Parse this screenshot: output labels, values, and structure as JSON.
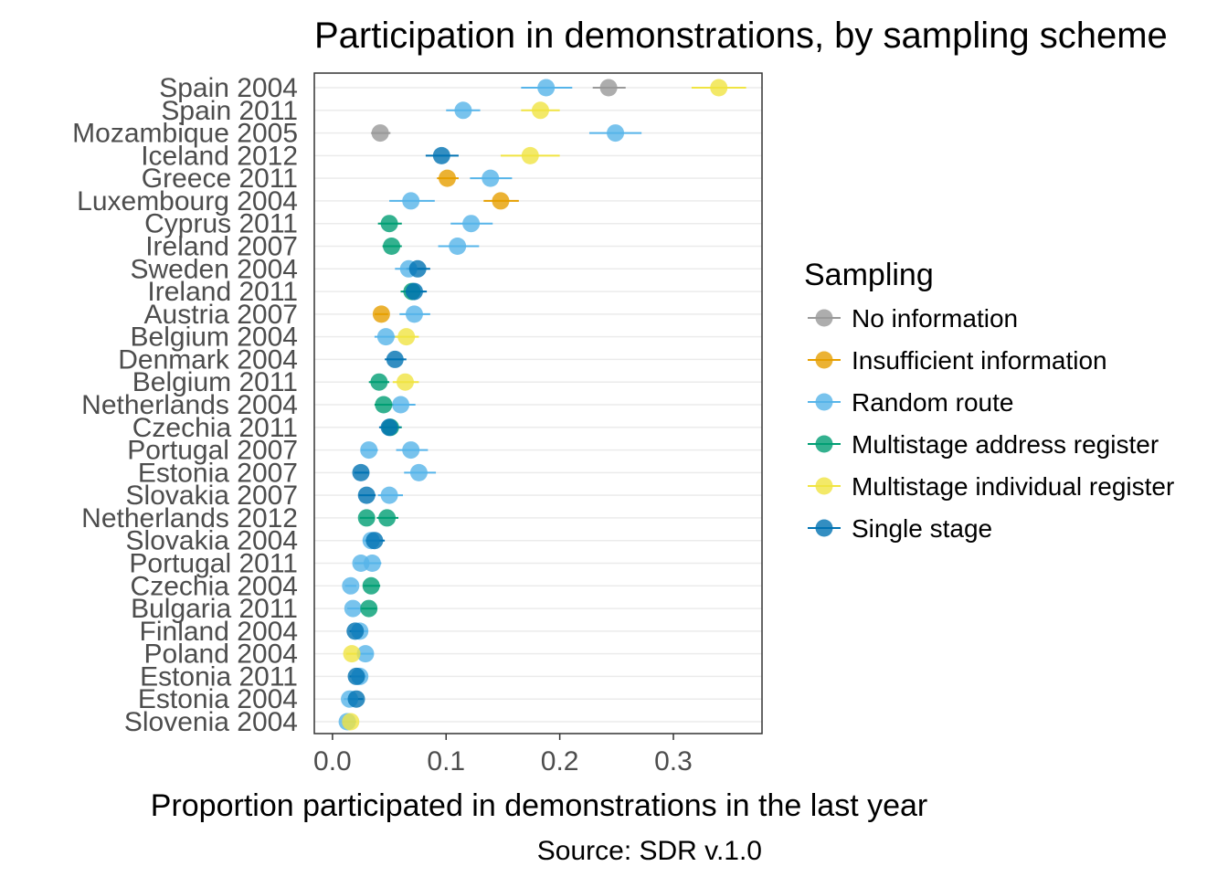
{
  "chart_data": {
    "type": "scatter",
    "title": "Participation in demonstrations, by sampling scheme",
    "xlabel": "Proportion participated in demonstrations in the last year",
    "ylabel": "",
    "caption": "Source: SDR v.1.0",
    "xlim": [
      -0.016,
      0.378
    ],
    "xticks": [
      0.0,
      0.1,
      0.2,
      0.3
    ],
    "xtick_labels": [
      "0.0",
      "0.1",
      "0.2",
      "0.3"
    ],
    "grid": "horizontal",
    "legend_position": "right",
    "legend_title": "Sampling",
    "categories": [
      "Spain 2004",
      "Spain 2011",
      "Mozambique 2005",
      "Iceland 2012",
      "Greece 2011",
      "Luxembourg 2004",
      "Cyprus 2011",
      "Ireland 2007",
      "Sweden 2004",
      "Ireland 2011",
      "Austria 2007",
      "Belgium 2004",
      "Denmark 2004",
      "Belgium 2011",
      "Netherlands 2004",
      "Czechia 2011",
      "Portugal 2007",
      "Estonia 2007",
      "Slovakia 2007",
      "Netherlands 2012",
      "Slovakia 2004",
      "Portugal 2011",
      "Czechia 2004",
      "Bulgaria 2011",
      "Finland 2004",
      "Poland 2004",
      "Estonia 2011",
      "Estonia 2004",
      "Slovenia 2004"
    ],
    "series": [
      {
        "name": "No information",
        "color": "#999999",
        "points": [
          {
            "category": "Spain 2004",
            "value": 0.243,
            "low": 0.229,
            "high": 0.258
          },
          {
            "category": "Mozambique 2005",
            "value": 0.042,
            "low": 0.034,
            "high": 0.051
          }
        ]
      },
      {
        "name": "Insufficient information",
        "color": "#E69F00",
        "points": [
          {
            "category": "Greece 2011",
            "value": 0.101,
            "low": 0.092,
            "high": 0.111
          },
          {
            "category": "Luxembourg 2004",
            "value": 0.148,
            "low": 0.133,
            "high": 0.164
          },
          {
            "category": "Austria 2007",
            "value": 0.043,
            "low": 0.037,
            "high": 0.049
          }
        ]
      },
      {
        "name": "Random route",
        "color": "#56B4E9",
        "points": [
          {
            "category": "Spain 2004",
            "value": 0.188,
            "low": 0.166,
            "high": 0.211
          },
          {
            "category": "Spain 2011",
            "value": 0.115,
            "low": 0.1,
            "high": 0.13
          },
          {
            "category": "Mozambique 2005",
            "value": 0.249,
            "low": 0.226,
            "high": 0.272
          },
          {
            "category": "Greece 2011",
            "value": 0.139,
            "low": 0.121,
            "high": 0.158
          },
          {
            "category": "Luxembourg 2004",
            "value": 0.069,
            "low": 0.05,
            "high": 0.09
          },
          {
            "category": "Cyprus 2011",
            "value": 0.122,
            "low": 0.104,
            "high": 0.141
          },
          {
            "category": "Ireland 2007",
            "value": 0.11,
            "low": 0.093,
            "high": 0.129
          },
          {
            "category": "Sweden 2004",
            "value": 0.067,
            "low": 0.055,
            "high": 0.08
          },
          {
            "category": "Austria 2007",
            "value": 0.072,
            "low": 0.059,
            "high": 0.086
          },
          {
            "category": "Belgium 2004",
            "value": 0.047,
            "low": 0.037,
            "high": 0.058
          },
          {
            "category": "Netherlands 2004",
            "value": 0.06,
            "low": 0.048,
            "high": 0.073
          },
          {
            "category": "Portugal 2007",
            "value": 0.032,
            "low": 0.025,
            "high": 0.04
          },
          {
            "category": "Portugal 2007",
            "value": 0.069,
            "low": 0.056,
            "high": 0.084
          },
          {
            "category": "Estonia 2007",
            "value": 0.076,
            "low": 0.063,
            "high": 0.091
          },
          {
            "category": "Slovakia 2007",
            "value": 0.05,
            "low": 0.04,
            "high": 0.062
          },
          {
            "category": "Slovakia 2004",
            "value": 0.034,
            "low": 0.027,
            "high": 0.042
          },
          {
            "category": "Portugal 2011",
            "value": 0.025,
            "low": 0.019,
            "high": 0.032
          },
          {
            "category": "Portugal 2011",
            "value": 0.035,
            "low": 0.028,
            "high": 0.043
          },
          {
            "category": "Czechia 2004",
            "value": 0.016,
            "low": 0.011,
            "high": 0.021
          },
          {
            "category": "Bulgaria 2011",
            "value": 0.018,
            "low": 0.013,
            "high": 0.024
          },
          {
            "category": "Finland 2004",
            "value": 0.024,
            "low": 0.018,
            "high": 0.031
          },
          {
            "category": "Poland 2004",
            "value": 0.029,
            "low": 0.022,
            "high": 0.036
          },
          {
            "category": "Estonia 2011",
            "value": 0.024,
            "low": 0.018,
            "high": 0.03
          },
          {
            "category": "Estonia 2004",
            "value": 0.015,
            "low": 0.01,
            "high": 0.02
          },
          {
            "category": "Slovenia 2004",
            "value": 0.013,
            "low": 0.009,
            "high": 0.018
          }
        ]
      },
      {
        "name": "Multistage address register",
        "color": "#009E73",
        "points": [
          {
            "category": "Cyprus 2011",
            "value": 0.05,
            "low": 0.04,
            "high": 0.061
          },
          {
            "category": "Ireland 2007",
            "value": 0.052,
            "low": 0.044,
            "high": 0.061
          },
          {
            "category": "Ireland 2011",
            "value": 0.07,
            "low": 0.06,
            "high": 0.081
          },
          {
            "category": "Belgium 2011",
            "value": 0.041,
            "low": 0.032,
            "high": 0.05
          },
          {
            "category": "Netherlands 2004",
            "value": 0.045,
            "low": 0.037,
            "high": 0.054
          },
          {
            "category": "Czechia 2011",
            "value": 0.051,
            "low": 0.042,
            "high": 0.061
          },
          {
            "category": "Netherlands 2012",
            "value": 0.03,
            "low": 0.024,
            "high": 0.037
          },
          {
            "category": "Netherlands 2012",
            "value": 0.048,
            "low": 0.039,
            "high": 0.058
          },
          {
            "category": "Czechia 2004",
            "value": 0.034,
            "low": 0.027,
            "high": 0.042
          },
          {
            "category": "Bulgaria 2011",
            "value": 0.032,
            "low": 0.025,
            "high": 0.039
          }
        ]
      },
      {
        "name": "Multistage individual register",
        "color": "#F0E442",
        "points": [
          {
            "category": "Spain 2004",
            "value": 0.34,
            "low": 0.316,
            "high": 0.364
          },
          {
            "category": "Spain 2011",
            "value": 0.183,
            "low": 0.166,
            "high": 0.2
          },
          {
            "category": "Iceland 2012",
            "value": 0.174,
            "low": 0.148,
            "high": 0.2
          },
          {
            "category": "Belgium 2004",
            "value": 0.065,
            "low": 0.055,
            "high": 0.076
          },
          {
            "category": "Belgium 2011",
            "value": 0.064,
            "low": 0.053,
            "high": 0.076
          },
          {
            "category": "Poland 2004",
            "value": 0.017,
            "low": 0.012,
            "high": 0.022
          },
          {
            "category": "Slovenia 2004",
            "value": 0.016,
            "low": 0.011,
            "high": 0.021
          }
        ]
      },
      {
        "name": "Single stage",
        "color": "#0072B2",
        "points": [
          {
            "category": "Iceland 2012",
            "value": 0.096,
            "low": 0.082,
            "high": 0.111
          },
          {
            "category": "Sweden 2004",
            "value": 0.075,
            "low": 0.065,
            "high": 0.086
          },
          {
            "category": "Ireland 2011",
            "value": 0.072,
            "low": 0.062,
            "high": 0.083
          },
          {
            "category": "Denmark 2004",
            "value": 0.055,
            "low": 0.046,
            "high": 0.065
          },
          {
            "category": "Czechia 2011",
            "value": 0.05,
            "low": 0.041,
            "high": 0.06
          },
          {
            "category": "Estonia 2007",
            "value": 0.025,
            "low": 0.019,
            "high": 0.032
          },
          {
            "category": "Slovakia 2007",
            "value": 0.03,
            "low": 0.023,
            "high": 0.038
          },
          {
            "category": "Slovakia 2004",
            "value": 0.037,
            "low": 0.029,
            "high": 0.046
          },
          {
            "category": "Finland 2004",
            "value": 0.02,
            "low": 0.015,
            "high": 0.026
          },
          {
            "category": "Estonia 2011",
            "value": 0.021,
            "low": 0.015,
            "high": 0.027
          },
          {
            "category": "Estonia 2004",
            "value": 0.021,
            "low": 0.015,
            "high": 0.027
          }
        ]
      }
    ]
  }
}
